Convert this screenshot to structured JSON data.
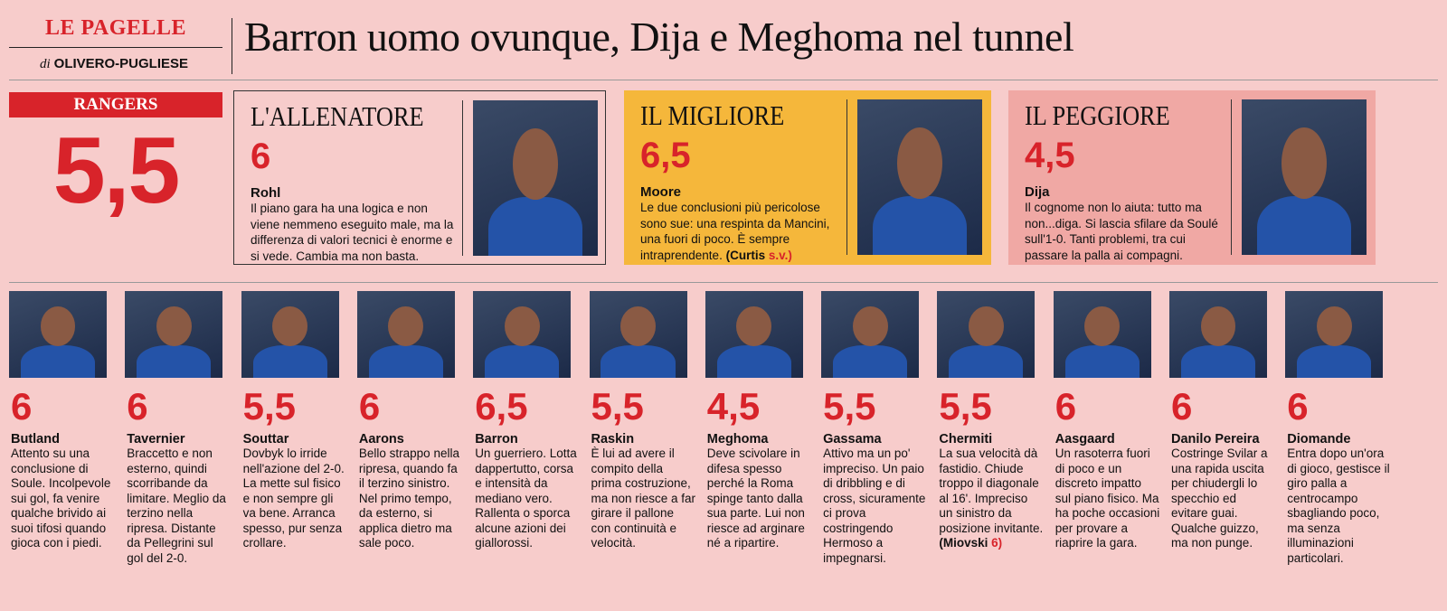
{
  "header": {
    "section": "LE PAGELLE",
    "byline_prefix": "di",
    "byline": "OLIVERO-PUGLIESE",
    "title": "Barron uomo ovunque, Dija e Meghoma nel tunnel"
  },
  "team": {
    "name": "RANGERS",
    "grade": "5,5"
  },
  "featured": [
    {
      "label": "L'ALLENATORE",
      "grade": "6",
      "name": "Rohl",
      "text": "Il piano gara ha una logica e non viene nemmeno eseguito male, ma la differenza di valori tecnici è enorme e si vede. Cambia ma non basta."
    },
    {
      "label": "IL MIGLIORE",
      "grade": "6,5",
      "name": "Moore",
      "text": "Le due conclusioni più pericolose sono sue: una respinta da Mancini, una fuori di poco. È sempre intraprendente.",
      "sub_name": "(Curtis",
      "sub_grade": "s.v.)"
    },
    {
      "label": "IL PEGGIORE",
      "grade": "4,5",
      "name": "Dija",
      "text": "Il cognome non lo aiuta: tutto ma non...diga. Si lascia sfilare da Soulé sull'1-0. Tanti problemi, tra cui passare la palla ai compagni."
    }
  ],
  "players": [
    {
      "grade": "6",
      "name": "Butland",
      "text": "Attento su una conclusione di Soule. Incolpevole sui gol, fa venire qualche brivido ai suoi tifosi quando gioca con i piedi."
    },
    {
      "grade": "6",
      "name": "Tavernier",
      "text": "Braccetto e non esterno, quindi scorribande da limitare. Meglio da terzino nella ripresa. Distante da Pellegrini sul gol del 2-0."
    },
    {
      "grade": "5,5",
      "name": "Souttar",
      "text": "Dovbyk lo irride nell'azione del 2-0. La mette sul fisico e non sempre gli va bene. Arranca spesso, pur senza crollare."
    },
    {
      "grade": "6",
      "name": "Aarons",
      "text": "Bello strappo nella ripresa, quando fa il terzino sinistro. Nel primo tempo, da esterno, si applica dietro ma sale poco."
    },
    {
      "grade": "6,5",
      "name": "Barron",
      "text": "Un guerriero. Lotta dappertutto, corsa e intensità da mediano vero. Rallenta o sporca alcune azioni dei giallorossi."
    },
    {
      "grade": "5,5",
      "name": "Raskin",
      "text": "È lui ad avere il compito della prima costruzione, ma non riesce a far girare il pallone con continuità e velocità."
    },
    {
      "grade": "4,5",
      "name": "Meghoma",
      "text": "Deve scivolare in difesa spesso perché la Roma spinge tanto dalla sua parte. Lui non riesce ad arginare né a ripartire."
    },
    {
      "grade": "5,5",
      "name": "Gassama",
      "text": "Attivo ma un po' impreciso. Un paio di dribbling e di cross, sicuramente ci prova costringendo Hermoso a impegnarsi."
    },
    {
      "grade": "5,5",
      "name": "Chermiti",
      "text": "La sua velocità dà fastidio. Chiude troppo il diagonale al 16'. Impreciso un sinistro da posizione invitante.",
      "sub_name": "(Miovski",
      "sub_grade": "6)"
    },
    {
      "grade": "6",
      "name": "Aasgaard",
      "text": "Un rasoterra fuori di poco e un discreto impatto sul piano fisico. Ma ha poche occasioni per provare a riaprire la gara."
    },
    {
      "grade": "6",
      "name": "Danilo Pereira",
      "text": "Costringe Svilar a una rapida uscita per chiudergli lo specchio ed evitare guai. Qualche guizzo, ma non punge."
    },
    {
      "grade": "6",
      "name": "Diomande",
      "text": "Entra dopo un'ora di gioco, gestisce il giro palla a centrocampo sbagliando poco, ma senza illuminazioni particolari."
    }
  ]
}
